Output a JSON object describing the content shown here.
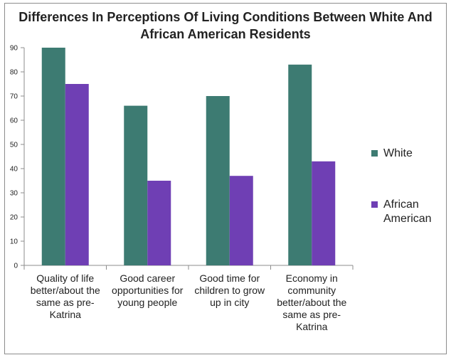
{
  "chart_data": {
    "type": "bar",
    "title": "Differences In Perceptions Of Living Conditions Between White And African American Residents",
    "categories": [
      "Quality of life better/about the same as pre-Katrina",
      "Good career opportunities for young people",
      "Good time for children to grow up in city",
      "Economy in community better/about the same as pre-Katrina"
    ],
    "series": [
      {
        "name": "White",
        "values": [
          90,
          66,
          70,
          83
        ],
        "color": "#3d7b72"
      },
      {
        "name": "African American",
        "values": [
          75,
          35,
          37,
          43
        ],
        "color": "#6f3fb4"
      }
    ],
    "xlabel": "",
    "ylabel": "",
    "ylim": [
      0,
      90
    ],
    "yticks": [
      0,
      10,
      20,
      30,
      40,
      50,
      60,
      70,
      80,
      90
    ],
    "grid": false,
    "legend": "right"
  }
}
